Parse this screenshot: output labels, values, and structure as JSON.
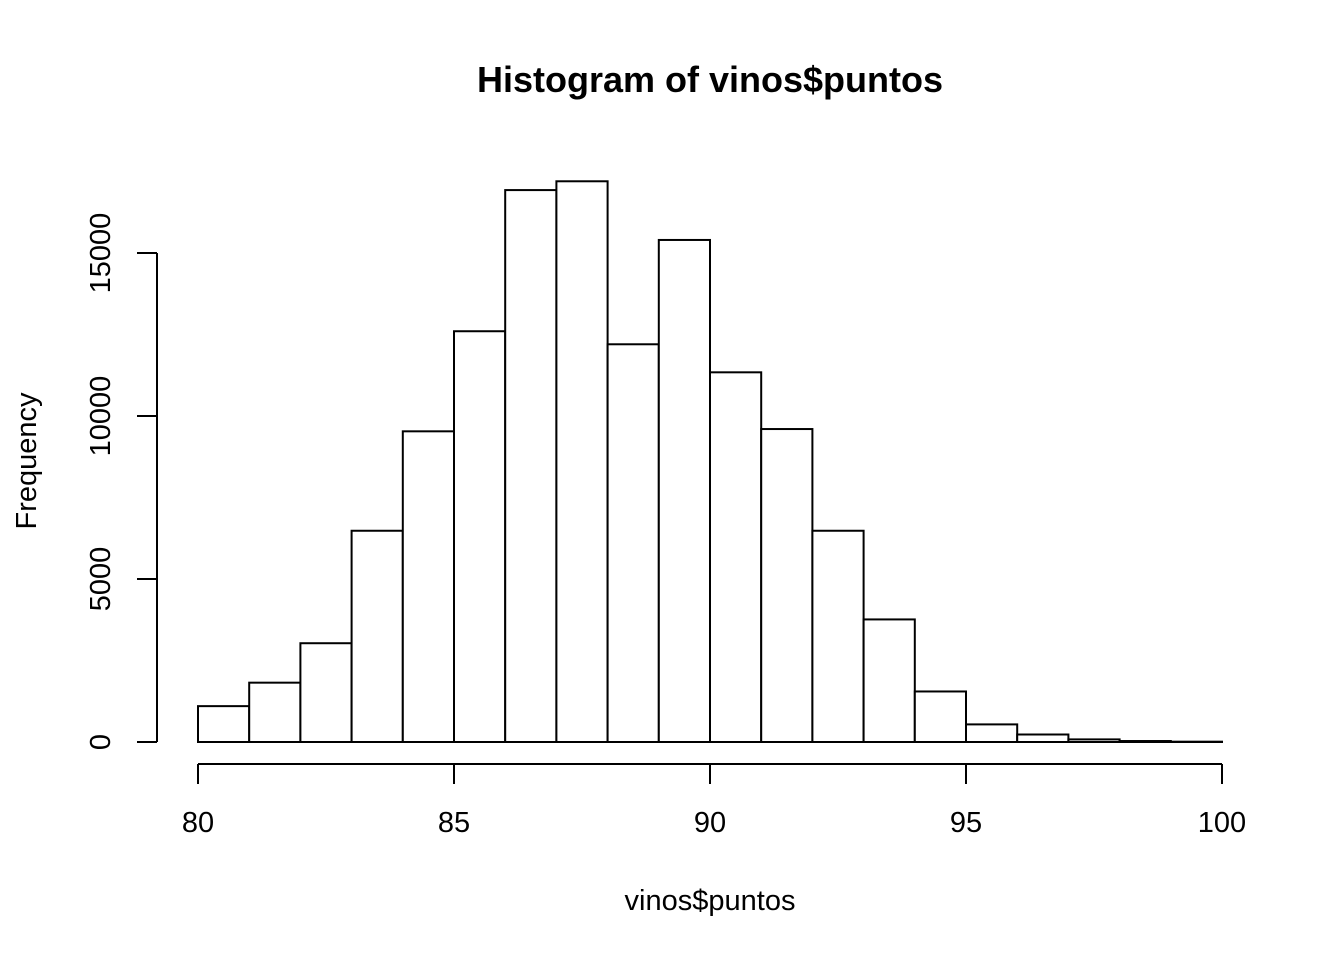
{
  "chart_data": {
    "type": "bar",
    "title": "Histogram of vinos$puntos",
    "xlabel": "vinos$puntos",
    "ylabel": "Frequency",
    "bin_edges": [
      80,
      81,
      82,
      83,
      84,
      85,
      86,
      87,
      88,
      89,
      90,
      91,
      92,
      93,
      94,
      95,
      96,
      97,
      98,
      99,
      100
    ],
    "values": [
      1100,
      1820,
      3030,
      6480,
      9530,
      12600,
      16930,
      17200,
      12200,
      15400,
      11340,
      9600,
      6480,
      3760,
      1550,
      540,
      230,
      80,
      30,
      10
    ],
    "x_ticks": [
      80,
      85,
      90,
      95,
      100
    ],
    "y_ticks": [
      0,
      5000,
      10000,
      15000
    ],
    "xlim": [
      80,
      100
    ],
    "ylim": [
      0,
      15000
    ],
    "grid": false,
    "colors": {
      "bar_fill": "#ffffff",
      "bar_stroke": "#000000"
    }
  }
}
